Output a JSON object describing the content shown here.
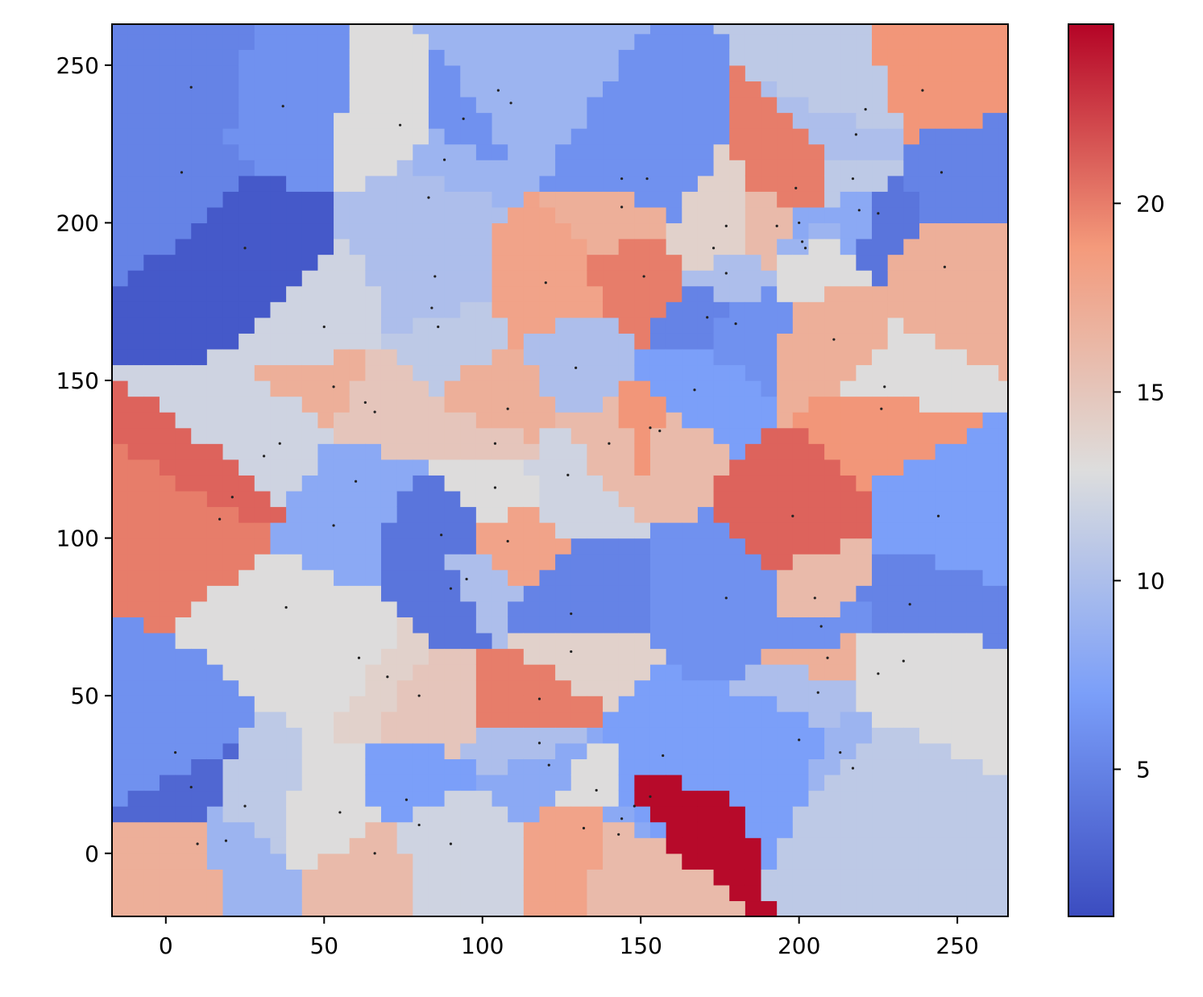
{
  "chart_data": {
    "type": "nearest-heatmap",
    "colormap": "coolwarm",
    "clim": [
      1.1,
      24.75
    ],
    "xlim": [
      -17,
      266
    ],
    "ylim": [
      -20,
      263
    ],
    "xticks": [
      0,
      50,
      100,
      150,
      200,
      250
    ],
    "yticks": [
      0,
      50,
      100,
      150,
      200,
      250
    ],
    "colorbar_ticks": [
      5,
      10,
      15,
      20
    ],
    "x": [
      8,
      37,
      5,
      25,
      74,
      105,
      109,
      94,
      88,
      83,
      144,
      144,
      152,
      85,
      84,
      86,
      50,
      120,
      151,
      177,
      173,
      177,
      171,
      180,
      129.5,
      167,
      53,
      63,
      66,
      108,
      104,
      140,
      153,
      156,
      36,
      31,
      60,
      104,
      127,
      21,
      17,
      53,
      87,
      108,
      95,
      90,
      38,
      128,
      177,
      198,
      244,
      205,
      207,
      235,
      209,
      225,
      233,
      206,
      61,
      70,
      80,
      118,
      128,
      118,
      121,
      157,
      200,
      213,
      217,
      3,
      8,
      25,
      10,
      19,
      55,
      76,
      80,
      90,
      66,
      136,
      148,
      144,
      132,
      143,
      153,
      239,
      221,
      218,
      217,
      245,
      199,
      219,
      225,
      193,
      200,
      201,
      202,
      246,
      211,
      227,
      226
    ],
    "y": [
      243,
      237,
      216,
      192,
      231,
      242,
      238,
      233,
      220,
      208,
      205,
      214,
      214,
      183,
      173,
      167,
      167,
      181,
      183,
      199,
      192,
      184,
      170,
      168,
      154,
      147,
      148,
      143,
      140,
      141,
      130,
      130,
      135,
      134,
      130,
      126,
      118,
      116,
      120,
      113,
      106,
      104,
      101,
      99,
      87,
      84,
      78,
      76,
      81,
      107,
      107,
      81,
      72,
      79,
      62,
      57,
      61,
      51,
      62,
      56,
      50,
      49,
      64,
      35,
      28,
      31,
      36,
      32,
      27,
      32,
      21,
      15,
      3,
      4,
      13,
      17,
      9,
      3,
      0,
      20,
      15,
      11,
      8,
      6,
      18,
      242,
      236,
      228,
      214,
      216,
      211,
      204,
      203,
      199,
      200,
      194,
      192,
      186,
      163,
      148,
      141
    ],
    "values": [
      5,
      6,
      5,
      2,
      13,
      9,
      9,
      6,
      9,
      10,
      17,
      6,
      6,
      10,
      10,
      11,
      12,
      18,
      20,
      14,
      14,
      10,
      5,
      6,
      10,
      7,
      17,
      15,
      15,
      17,
      15,
      16,
      19,
      16,
      12,
      12,
      8,
      13,
      12,
      21,
      20,
      8,
      4,
      18,
      10,
      4,
      13,
      5,
      6,
      21,
      7,
      16,
      6,
      5,
      17,
      13,
      13,
      10,
      13,
      14,
      15,
      20,
      14,
      10,
      8,
      7,
      7,
      9,
      11,
      6,
      3,
      11,
      17,
      9,
      13,
      7,
      12,
      12,
      16,
      13,
      7,
      8,
      18,
      16,
      24.5,
      19,
      11,
      10,
      11,
      5,
      20,
      8,
      4,
      16,
      8,
      9,
      13,
      17,
      17,
      13,
      19
    ]
  }
}
